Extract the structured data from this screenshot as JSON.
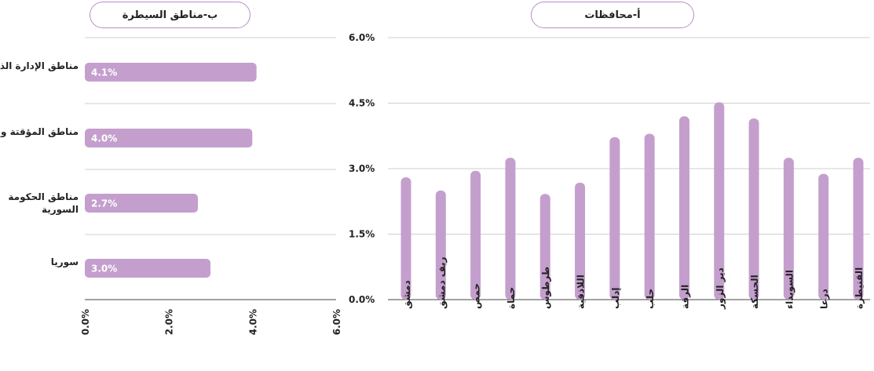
{
  "colors": {
    "bar": "#c49fcd",
    "grid": "#cfcfcf",
    "axis": "#444444",
    "pill_border": "#b98ec9",
    "bar_label": "#ffffff"
  },
  "chart_data": [
    {
      "type": "bar",
      "orientation": "horizontal",
      "title": "ب-مناطق السيطرة",
      "categories": [
        "مناطق الإدارة الذاتية",
        "مناطق المؤقتة والإنقاذ",
        "مناطق الحكومة السورية",
        "سوريا"
      ],
      "values": [
        4.1,
        4.0,
        2.7,
        3.0
      ],
      "value_labels": [
        "4.1%",
        "4.0%",
        "2.7%",
        "3.0%"
      ],
      "xlim": [
        0,
        6
      ],
      "xticks": [
        "0.0%",
        "2.0%",
        "4.0%",
        "6.0%"
      ],
      "grid": true
    },
    {
      "type": "bar",
      "orientation": "vertical",
      "title": "أ-محافظات",
      "categories": [
        "دمشق",
        "ريف دمشق",
        "حمص",
        "حماة",
        "طرطوس",
        "اللاذقية",
        "إدلب",
        "حلب",
        "الرقة",
        "دير الزور",
        "الحسكة",
        "السويداء",
        "درعا",
        "القنيطرة"
      ],
      "values": [
        2.8,
        2.5,
        2.95,
        3.25,
        2.42,
        2.68,
        3.72,
        3.8,
        4.2,
        4.52,
        4.15,
        3.25,
        2.88,
        3.25
      ],
      "ylim": [
        0,
        6
      ],
      "yticks": [
        "0.0%",
        "1.5%",
        "3.0%",
        "4.5%",
        "6.0%"
      ],
      "grid": true
    }
  ]
}
